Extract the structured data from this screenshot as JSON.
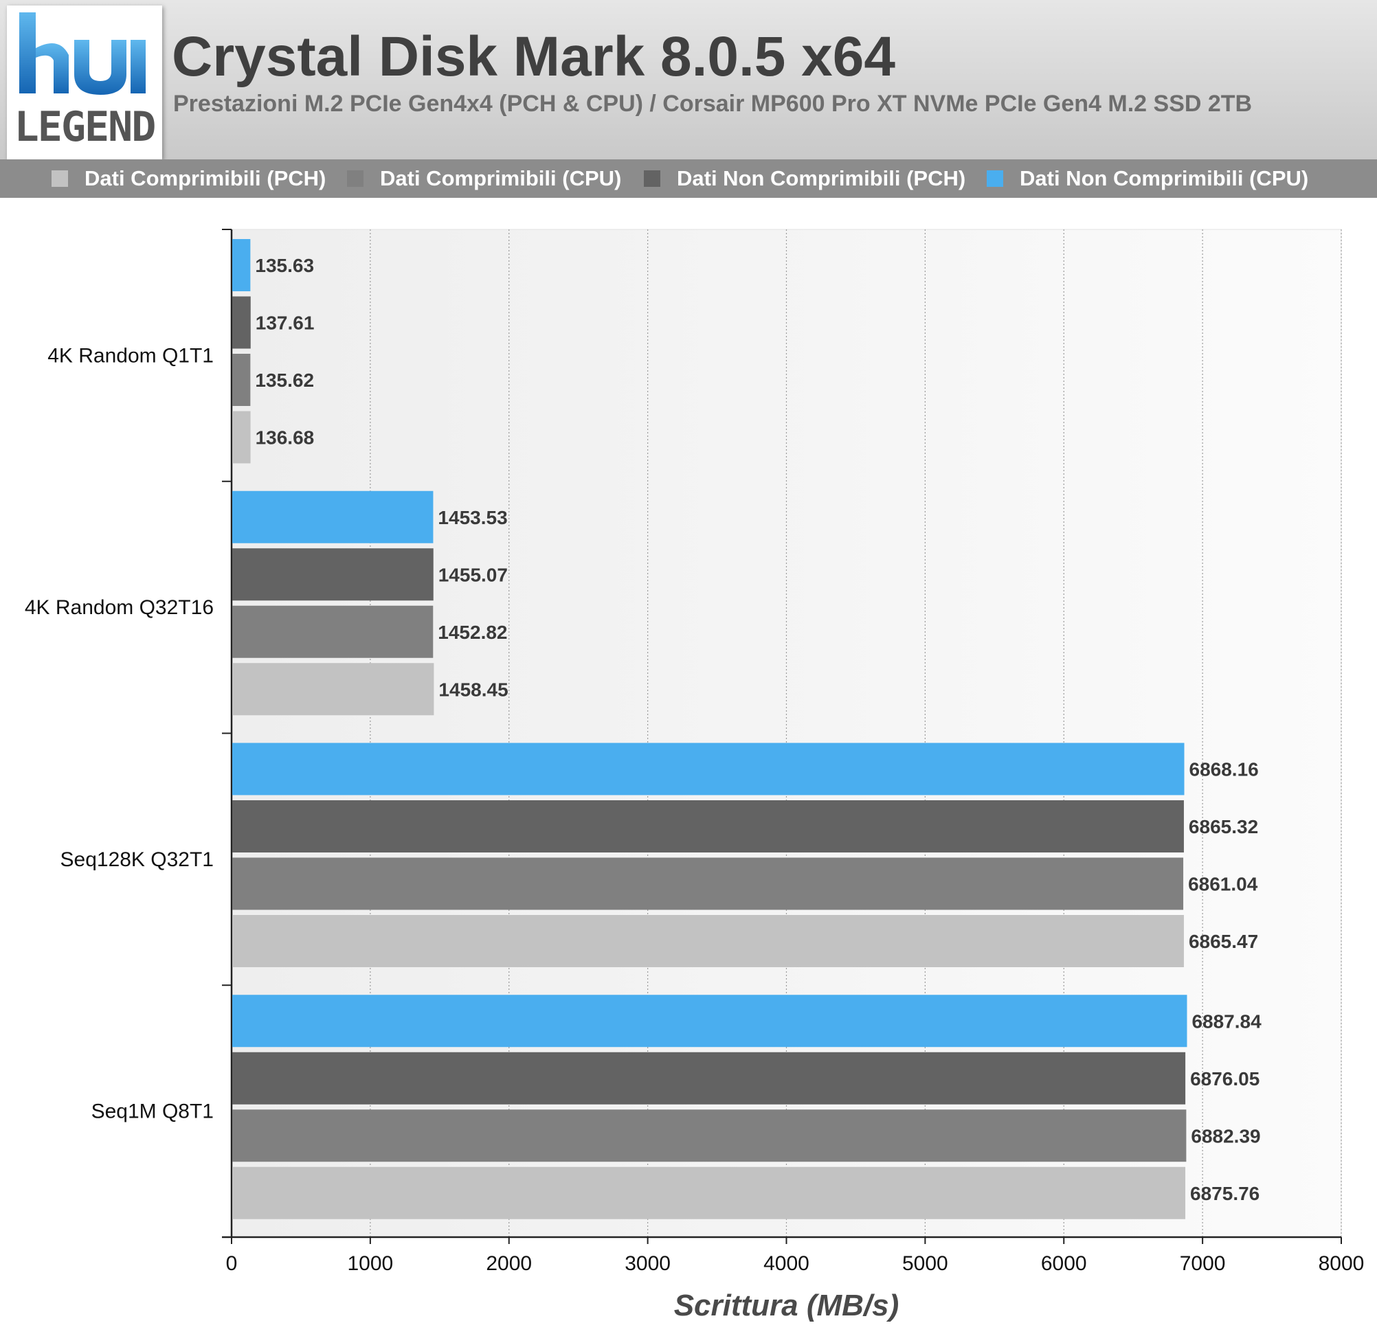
{
  "header": {
    "logo_text": "LEGEND",
    "title": "Crystal Disk Mark 8.0.5 x64",
    "subtitle": "Prestazioni M.2 PCIe Gen4x4 (PCH & CPU) / Corsair MP600 Pro XT NVMe PCIe Gen4 M.2 SSD 2TB"
  },
  "chart_data": {
    "type": "bar",
    "orientation": "horizontal",
    "title": "Crystal Disk Mark 8.0.5 x64",
    "subtitle": "Prestazioni M.2 PCIe Gen4x4 (PCH & CPU) / Corsair MP600 Pro XT NVMe PCIe Gen4 M.2 SSD 2TB",
    "xlabel": "Scrittura (MB/s)",
    "ylabel": "",
    "xlim": [
      0,
      8000
    ],
    "xticks": [
      0,
      1000,
      2000,
      3000,
      4000,
      5000,
      6000,
      7000,
      8000
    ],
    "grid": true,
    "legend_position": "top",
    "categories": [
      "4K Random Q1T1",
      "4K Random Q32T16",
      "Seq128K Q32T1",
      "Seq1M Q8T1"
    ],
    "series": [
      {
        "name": "Dati Comprimibili (PCH)",
        "color": "#c2c2c2",
        "values": [
          136.68,
          1458.45,
          6865.47,
          6875.76
        ],
        "labels": [
          "136.68",
          "1458.45",
          "6865.47",
          "6875.76"
        ]
      },
      {
        "name": "Dati Comprimibili (CPU)",
        "color": "#808080",
        "values": [
          135.62,
          1452.82,
          6861.04,
          6882.39
        ],
        "labels": [
          "135.62",
          "1452.82",
          "6861.04",
          "6882.39"
        ]
      },
      {
        "name": "Dati Non Comprimibili (PCH)",
        "color": "#636363",
        "values": [
          137.61,
          1455.07,
          6865.32,
          6876.05
        ],
        "labels": [
          "137.61",
          "1455.07",
          "6865.32",
          "6876.05"
        ]
      },
      {
        "name": "Dati Non Comprimibili (CPU)",
        "color": "#4aaeef",
        "values": [
          135.63,
          1453.53,
          6868.16,
          6887.84
        ],
        "labels": [
          "135.63",
          "1453.53",
          "6868.16",
          "6887.84"
        ]
      }
    ]
  }
}
